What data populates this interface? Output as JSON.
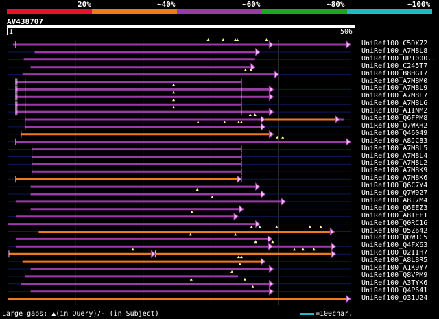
{
  "legend": [
    {
      "label": "20%",
      "color": "#e8112d"
    },
    {
      "label": "~40%",
      "color": "#ef7a1c"
    },
    {
      "label": "~60%",
      "color": "#9a3aa6"
    },
    {
      "label": "~80%",
      "color": "#1fa61f"
    },
    {
      "label": "~100%",
      "color": "#22b8c8"
    }
  ],
  "query": {
    "title": "AV438707",
    "start_label": "1",
    "end_label": "506",
    "length": 506
  },
  "colors": {
    "background": "#000000",
    "row_line": "#0a1a5a",
    "gridline": "#3a3a3a",
    "magenta": "#9a3aa6",
    "orange": "#ef7a1c",
    "gap_marker": "#ffff99",
    "arrow_fill": "#f4b8f4"
  },
  "hits": [
    {
      "name": "UniRef100_C5DX72",
      "start": 8,
      "end": 506,
      "color": "magenta",
      "ticks": [
        12,
        42
      ],
      "query_gaps": [
        296,
        318,
        336,
        339,
        382
      ],
      "arrows": [
        392,
        506
      ]
    },
    {
      "name": "UniRef100_A7M8L8",
      "start": 40,
      "end": 372,
      "color": "magenta",
      "ticks": [],
      "query_gaps": [],
      "arrows": [
        372
      ]
    },
    {
      "name": "UniRef100_UP1000..",
      "start": 24,
      "end": 365,
      "color": "magenta",
      "ticks": [],
      "query_gaps": [],
      "arrows": []
    },
    {
      "name": "UniRef100_C245T7",
      "start": 34,
      "end": 365,
      "color": "magenta",
      "ticks": [],
      "query_gaps": [],
      "arrows": [
        365
      ]
    },
    {
      "name": "UniRef100_B8HGT7",
      "start": 22,
      "end": 400,
      "color": "magenta",
      "ticks": [],
      "query_gaps": [
        351,
        359
      ],
      "arrows": [
        400
      ]
    },
    {
      "name": "UniRef100_A7M8M0",
      "start": 12,
      "end": 345,
      "color": "magenta",
      "ticks": [
        12,
        14,
        26,
        345
      ],
      "query_gaps": [],
      "arrows": []
    },
    {
      "name": "UniRef100_A7M8L9",
      "start": 12,
      "end": 392,
      "color": "magenta",
      "ticks": [
        12,
        14,
        26,
        345
      ],
      "query_gaps": [
        245
      ],
      "arrows": [
        392
      ]
    },
    {
      "name": "UniRef100_A7M8L7",
      "start": 12,
      "end": 392,
      "color": "magenta",
      "ticks": [
        12,
        14,
        26,
        345
      ],
      "query_gaps": [
        245
      ],
      "arrows": [
        392
      ]
    },
    {
      "name": "UniRef100_A7M8L6",
      "start": 12,
      "end": 345,
      "color": "magenta",
      "ticks": [
        12,
        14,
        26,
        345
      ],
      "query_gaps": [
        245
      ],
      "arrows": []
    },
    {
      "name": "UniRef100_A1INM2",
      "start": 12,
      "end": 392,
      "color": "magenta",
      "ticks": [
        12,
        14,
        26,
        345
      ],
      "query_gaps": [
        245
      ],
      "arrows": [
        392
      ]
    },
    {
      "name": "UniRef100_Q6FPM8",
      "start": 26,
      "end": 497,
      "color": "magenta",
      "ticks": [
        26
      ],
      "query_gaps": [
        358,
        365
      ],
      "arrows": [
        380,
        490
      ],
      "orange_segment": [
        378,
        490
      ]
    },
    {
      "name": "UniRef100_Q7WKH2",
      "start": 26,
      "end": 380,
      "color": "magenta",
      "ticks": [
        26
      ],
      "query_gaps": [
        281,
        320,
        341,
        345
      ],
      "arrows": [
        380
      ]
    },
    {
      "name": "UniRef100_Q46049",
      "start": 20,
      "end": 392,
      "color": "orange",
      "ticks": [
        20
      ],
      "query_gaps": [],
      "arrows": [
        392
      ]
    },
    {
      "name": "UniRef100_A8JC83",
      "start": 12,
      "end": 506,
      "color": "magenta",
      "ticks": [
        12
      ],
      "query_gaps": [
        398,
        406
      ],
      "arrows": [
        506
      ]
    },
    {
      "name": "UniRef100_A7M8L5",
      "start": 36,
      "end": 345,
      "color": "magenta",
      "ticks": [
        36,
        345
      ],
      "query_gaps": [],
      "arrows": []
    },
    {
      "name": "UniRef100_A7M8L4",
      "start": 36,
      "end": 345,
      "color": "magenta",
      "ticks": [
        36,
        345
      ],
      "query_gaps": [],
      "arrows": []
    },
    {
      "name": "UniRef100_A7M8L2",
      "start": 36,
      "end": 345,
      "color": "magenta",
      "ticks": [
        36,
        345
      ],
      "query_gaps": [],
      "arrows": []
    },
    {
      "name": "UniRef100_A7M8K9",
      "start": 36,
      "end": 345,
      "color": "magenta",
      "ticks": [
        36,
        345
      ],
      "query_gaps": [],
      "arrows": []
    },
    {
      "name": "UniRef100_A7M8K6",
      "start": 12,
      "end": 345,
      "color": "orange",
      "ticks": [
        12,
        345
      ],
      "query_gaps": [],
      "arrows": [
        345
      ]
    },
    {
      "name": "UniRef100_Q6C7Y4",
      "start": 34,
      "end": 372,
      "color": "magenta",
      "ticks": [],
      "query_gaps": [],
      "arrows": [
        372
      ]
    },
    {
      "name": "UniRef100_Q7W927",
      "start": 34,
      "end": 380,
      "color": "magenta",
      "ticks": [],
      "query_gaps": [
        280
      ],
      "arrows": [
        380
      ]
    },
    {
      "name": "UniRef100_A8J7M4",
      "start": 12,
      "end": 410,
      "color": "magenta",
      "ticks": [],
      "query_gaps": [
        302
      ],
      "arrows": [
        410
      ]
    },
    {
      "name": "UniRef100_Q6EEZ3",
      "start": 34,
      "end": 348,
      "color": "magenta",
      "ticks": [],
      "query_gaps": [],
      "arrows": [
        348
      ]
    },
    {
      "name": "UniRef100_A8IEF1",
      "start": 12,
      "end": 340,
      "color": "magenta",
      "ticks": [],
      "query_gaps": [
        272
      ],
      "arrows": [
        340
      ]
    },
    {
      "name": "UniRef100_Q0RC16",
      "start": 0,
      "end": 372,
      "color": "magenta",
      "ticks": [],
      "query_gaps": [],
      "arrows": [
        372
      ]
    },
    {
      "name": "UniRef100_Q5Z642",
      "start": 46,
      "end": 482,
      "color": "orange",
      "ticks": [],
      "query_gaps": [
        360,
        372,
        397,
        446,
        462
      ],
      "arrows": [
        482
      ]
    },
    {
      "name": "UniRef100_Q0W1C5",
      "start": 12,
      "end": 390,
      "color": "magenta",
      "ticks": [],
      "query_gaps": [
        270,
        336
      ],
      "arrows": [
        390
      ]
    },
    {
      "name": "UniRef100_Q4FX63",
      "start": 12,
      "end": 484,
      "color": "magenta",
      "ticks": [],
      "query_gaps": [
        366,
        391
      ],
      "arrows": [
        391,
        484
      ]
    },
    {
      "name": "UniRef100_Q2IIH7",
      "start": 2,
      "end": 484,
      "color": "orange",
      "ticks": [
        2,
        218
      ],
      "query_gaps": [
        185,
        423,
        436,
        452
      ],
      "arrows": [
        218,
        484
      ]
    },
    {
      "name": "UniRef100_A8L8R5",
      "start": 22,
      "end": 380,
      "color": "orange",
      "ticks": [],
      "query_gaps": [
        341,
        345
      ],
      "arrows": [
        380
      ]
    },
    {
      "name": "UniRef100_A1K9Y7",
      "start": 34,
      "end": 392,
      "color": "magenta",
      "ticks": [],
      "query_gaps": [
        343
      ],
      "arrows": [
        392
      ]
    },
    {
      "name": "UniRef100_Q8VPM9",
      "start": 26,
      "end": 340,
      "color": "magenta",
      "ticks": [],
      "query_gaps": [
        331
      ],
      "arrows": []
    },
    {
      "name": "UniRef100_A3TYK6",
      "start": 20,
      "end": 392,
      "color": "magenta",
      "ticks": [],
      "query_gaps": [
        271,
        350
      ],
      "arrows": [
        392
      ]
    },
    {
      "name": "UniRef100_Q4P641",
      "start": 34,
      "end": 392,
      "color": "magenta",
      "ticks": [],
      "query_gaps": [
        362
      ],
      "arrows": [
        392
      ]
    },
    {
      "name": "UniRef100_Q31U24",
      "start": 0,
      "end": 506,
      "color": "orange",
      "ticks": [],
      "query_gaps": [],
      "arrows": [
        506
      ]
    }
  ],
  "footer": {
    "text": "Large gaps: ▲(in Query)/- (in Subject)",
    "scale_label": "=100char."
  }
}
